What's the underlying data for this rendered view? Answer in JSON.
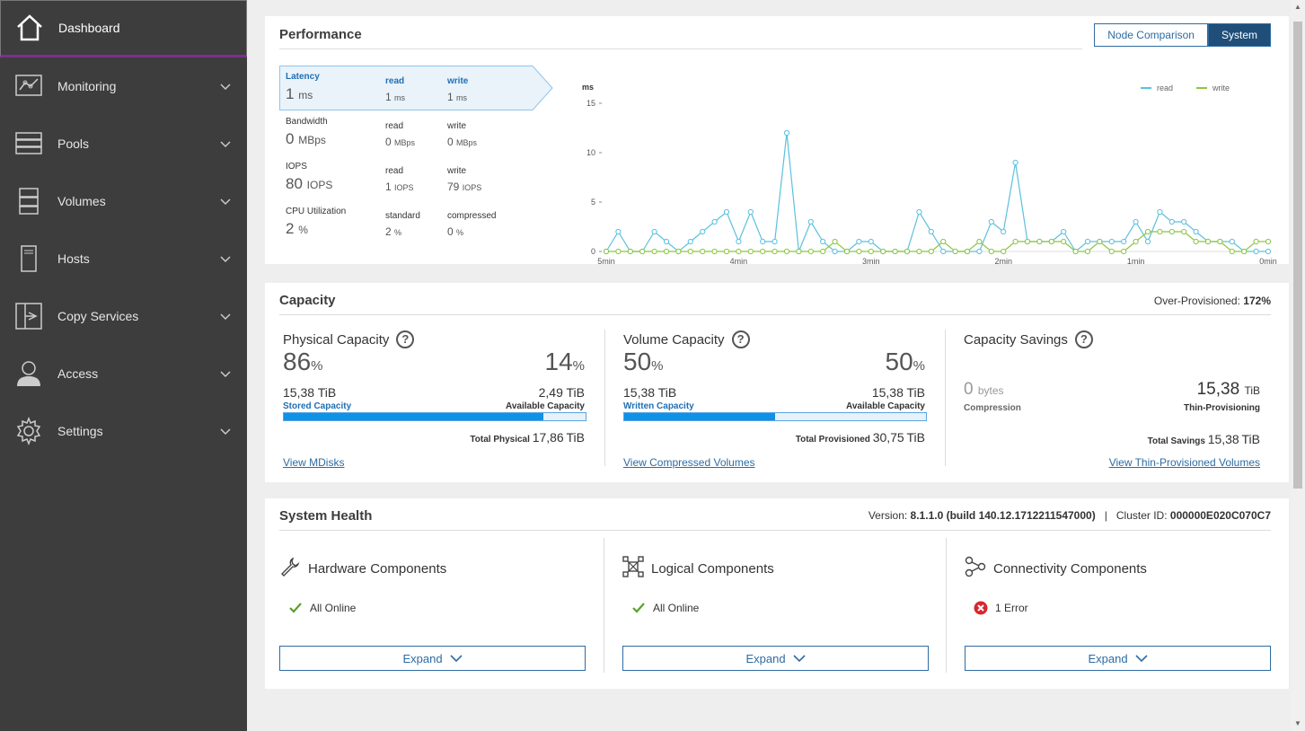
{
  "sidebar": {
    "items": [
      {
        "label": "Dashboard",
        "icon": "home-icon"
      },
      {
        "label": "Monitoring",
        "icon": "monitoring-icon"
      },
      {
        "label": "Pools",
        "icon": "pools-icon"
      },
      {
        "label": "Volumes",
        "icon": "volumes-icon"
      },
      {
        "label": "Hosts",
        "icon": "hosts-icon"
      },
      {
        "label": "Copy Services",
        "icon": "copy-services-icon"
      },
      {
        "label": "Access",
        "icon": "access-icon"
      },
      {
        "label": "Settings",
        "icon": "gear-icon"
      }
    ]
  },
  "performance": {
    "title": "Performance",
    "buttons": {
      "node_comparison": "Node Comparison",
      "system": "System"
    },
    "metrics": [
      {
        "label": "Latency",
        "value": "1",
        "unit": "ms",
        "sub1_label": "read",
        "sub1_value": "1",
        "sub1_unit": "ms",
        "sub2_label": "write",
        "sub2_value": "1",
        "sub2_unit": "ms"
      },
      {
        "label": "Bandwidth",
        "value": "0",
        "unit": "MBps",
        "sub1_label": "read",
        "sub1_value": "0",
        "sub1_unit": "MBps",
        "sub2_label": "write",
        "sub2_value": "0",
        "sub2_unit": "MBps"
      },
      {
        "label": "IOPS",
        "value": "80",
        "unit": "IOPS",
        "sub1_label": "read",
        "sub1_value": "1",
        "sub1_unit": "IOPS",
        "sub2_label": "write",
        "sub2_value": "79",
        "sub2_unit": "IOPS"
      },
      {
        "label": "CPU Utilization",
        "value": "2",
        "unit": "%",
        "sub1_label": "standard",
        "sub1_value": "2",
        "sub1_unit": "%",
        "sub2_label": "compressed",
        "sub2_value": "0",
        "sub2_unit": "%"
      }
    ]
  },
  "chart_data": {
    "type": "line",
    "ylabel": "ms",
    "ylim": [
      0,
      15
    ],
    "yticks": [
      "0",
      "5",
      "10",
      "15"
    ],
    "xticks": [
      "5min",
      "4min",
      "3min",
      "2min",
      "1min",
      "0min"
    ],
    "legend_position": "top-right",
    "series": [
      {
        "name": "read",
        "color": "#5bc0de",
        "values": [
          0,
          2,
          0,
          0,
          2,
          1,
          0,
          1,
          2,
          3,
          4,
          1,
          4,
          1,
          1,
          12,
          0,
          3,
          1,
          0,
          0,
          1,
          1,
          0,
          0,
          0,
          4,
          2,
          0,
          0,
          0,
          0,
          3,
          2,
          9,
          1,
          1,
          1,
          2,
          0,
          1,
          1,
          1,
          1,
          3,
          1,
          4,
          3,
          3,
          2,
          1,
          1,
          1,
          0,
          0,
          0
        ]
      },
      {
        "name": "write",
        "color": "#8cc63e",
        "values": [
          0,
          0,
          0,
          0,
          0,
          0,
          0,
          0,
          0,
          0,
          0,
          0,
          0,
          0,
          0,
          0,
          0,
          0,
          0,
          1,
          0,
          0,
          0,
          0,
          0,
          0,
          0,
          0,
          1,
          0,
          0,
          1,
          0,
          0,
          1,
          1,
          1,
          1,
          1,
          0,
          0,
          1,
          0,
          0,
          1,
          2,
          2,
          2,
          2,
          1,
          1,
          1,
          0,
          0,
          1,
          1
        ]
      }
    ]
  },
  "capacity": {
    "title": "Capacity",
    "over_provisioned_label": "Over-Provisioned:",
    "over_provisioned_value": "172%",
    "physical": {
      "title": "Physical Capacity",
      "left_pct": "86",
      "right_pct": "14",
      "pct_sign": "%",
      "left_tib": "15,38",
      "right_tib": "2,49",
      "tib_unit": "TiB",
      "left_label": "Stored Capacity",
      "right_label": "Available Capacity",
      "fill": 0.86,
      "total_label": "Total Physical",
      "total_value": "17,86",
      "total_unit": "TiB",
      "link": "View MDisks"
    },
    "volume": {
      "title": "Volume Capacity",
      "left_pct": "50",
      "right_pct": "50",
      "pct_sign": "%",
      "left_tib": "15,38",
      "right_tib": "15,38",
      "tib_unit": "TiB",
      "left_label": "Written Capacity",
      "right_label": "Available Capacity",
      "fill": 0.5,
      "total_label": "Total Provisioned",
      "total_value": "30,75",
      "total_unit": "TiB",
      "link": "View Compressed Volumes"
    },
    "savings": {
      "title": "Capacity Savings",
      "left_value": "0",
      "left_unit": "bytes",
      "left_label": "Compression",
      "right_value": "15,38",
      "right_unit": "TiB",
      "right_label": "Thin-Provisioning",
      "total_label": "Total Savings",
      "total_value": "15,38",
      "total_unit": "TiB",
      "link": "View Thin-Provisioned Volumes"
    }
  },
  "health": {
    "title": "System Health",
    "version_label": "Version:",
    "version_value": "8.1.1.0 (build 140.12.1712211547000)",
    "separator": "|",
    "cluster_label": "Cluster ID:",
    "cluster_value": "000000E020C070C7",
    "columns": [
      {
        "title": "Hardware Components",
        "icon": "wrench-icon",
        "status": "All Online",
        "status_icon": "check-icon",
        "expand": "Expand"
      },
      {
        "title": "Logical Components",
        "icon": "logical-icon",
        "status": "All Online",
        "status_icon": "check-icon",
        "expand": "Expand"
      },
      {
        "title": "Connectivity Components",
        "icon": "connectivity-icon",
        "status": "1 Error",
        "status_icon": "error-icon",
        "expand": "Expand"
      }
    ]
  },
  "colors": {
    "sidebar_bg": "#3d3d3d",
    "accent": "#2d6ca2",
    "bar_fill": "#0f91e6",
    "read": "#5bc0de",
    "write": "#8cc63e",
    "ok": "#5aa02c",
    "error": "#d9262e"
  }
}
